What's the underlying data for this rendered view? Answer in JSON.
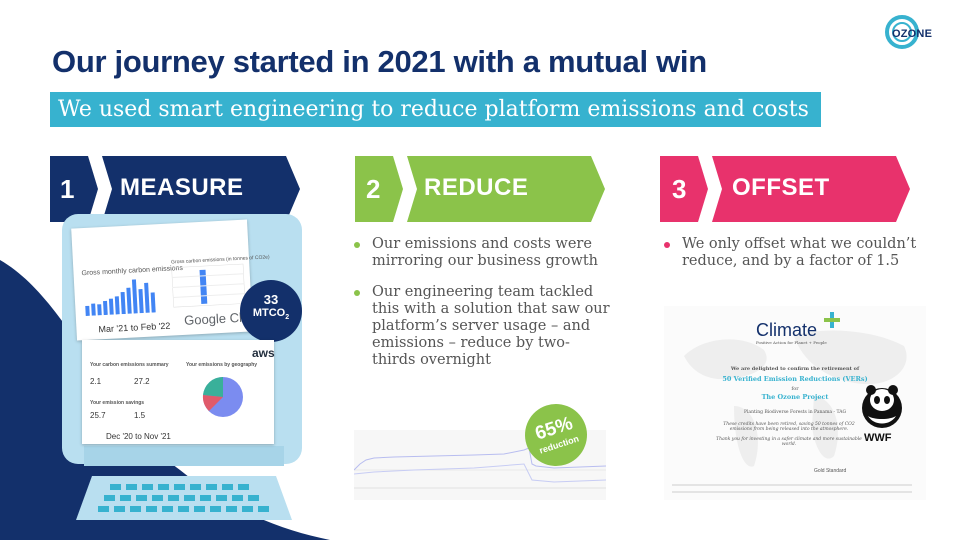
{
  "header": {
    "title": "Our journey started in 2021 with a mutual win",
    "subtitle": "We used smart engineering to reduce platform emissions and costs",
    "logo_text": "OZONE"
  },
  "colors": {
    "navy": "#13306b",
    "cyan": "#37b2cf",
    "green": "#8bc34a",
    "pink": "#e8326c"
  },
  "steps": [
    {
      "number": "1",
      "label": "MEASURE"
    },
    {
      "number": "2",
      "label": "REDUCE"
    },
    {
      "number": "3",
      "label": "OFFSET"
    }
  ],
  "measure": {
    "badge_value": "33",
    "badge_unit": "MTCO",
    "badge_sub": "2",
    "gcp_period": "Mar '21 to Feb '22",
    "gcp_logo": "Google Cloud",
    "aws_logo": "aws",
    "aws_period": "Dec '20 to Nov '21",
    "aws_cards": {
      "summary_title": "Your carbon emissions summary",
      "value_1": "2.1",
      "value_2": "27.2",
      "savings_title": "Your emission savings",
      "value_3": "25.7",
      "value_4": "1.5",
      "geo_title": "Your emissions by geography"
    },
    "gcp_cards": {
      "chart_title": "Gross monthly carbon emissions",
      "table_title": "Gross carbon emissions (in tonnes of CO2e)"
    }
  },
  "reduce": {
    "bullets": [
      "Our emissions and costs were mirroring our business growth",
      "Our engineering team tackled this with a solution that saw our platform’s server usage – and emissions – reduce by two-thirds overnight"
    ],
    "badge_value": "65%",
    "badge_label": "reduction"
  },
  "offset": {
    "bullets": [
      "We only offset what we couldn’t reduce, and by a factor of 1.5"
    ],
    "certificate": {
      "brand": "Climate",
      "tagline": "Positive Action for Planet + People",
      "line1": "We are delighted to confirm the retirement of",
      "line2": "50 Verified Emission Reductions (VERs)",
      "line3": "for",
      "line4": "The Ozone Project",
      "line5": "Planting Biodiverse Forests in Panama - TAG",
      "line6": "These credits have been retired, saving 50 tonnes of CO2 emissions from being released into the atmosphere.",
      "line7": "Thank you for investing in a safer climate and more sustainable world.",
      "standard": "Gold Standard",
      "wwf": "WWF"
    }
  }
}
